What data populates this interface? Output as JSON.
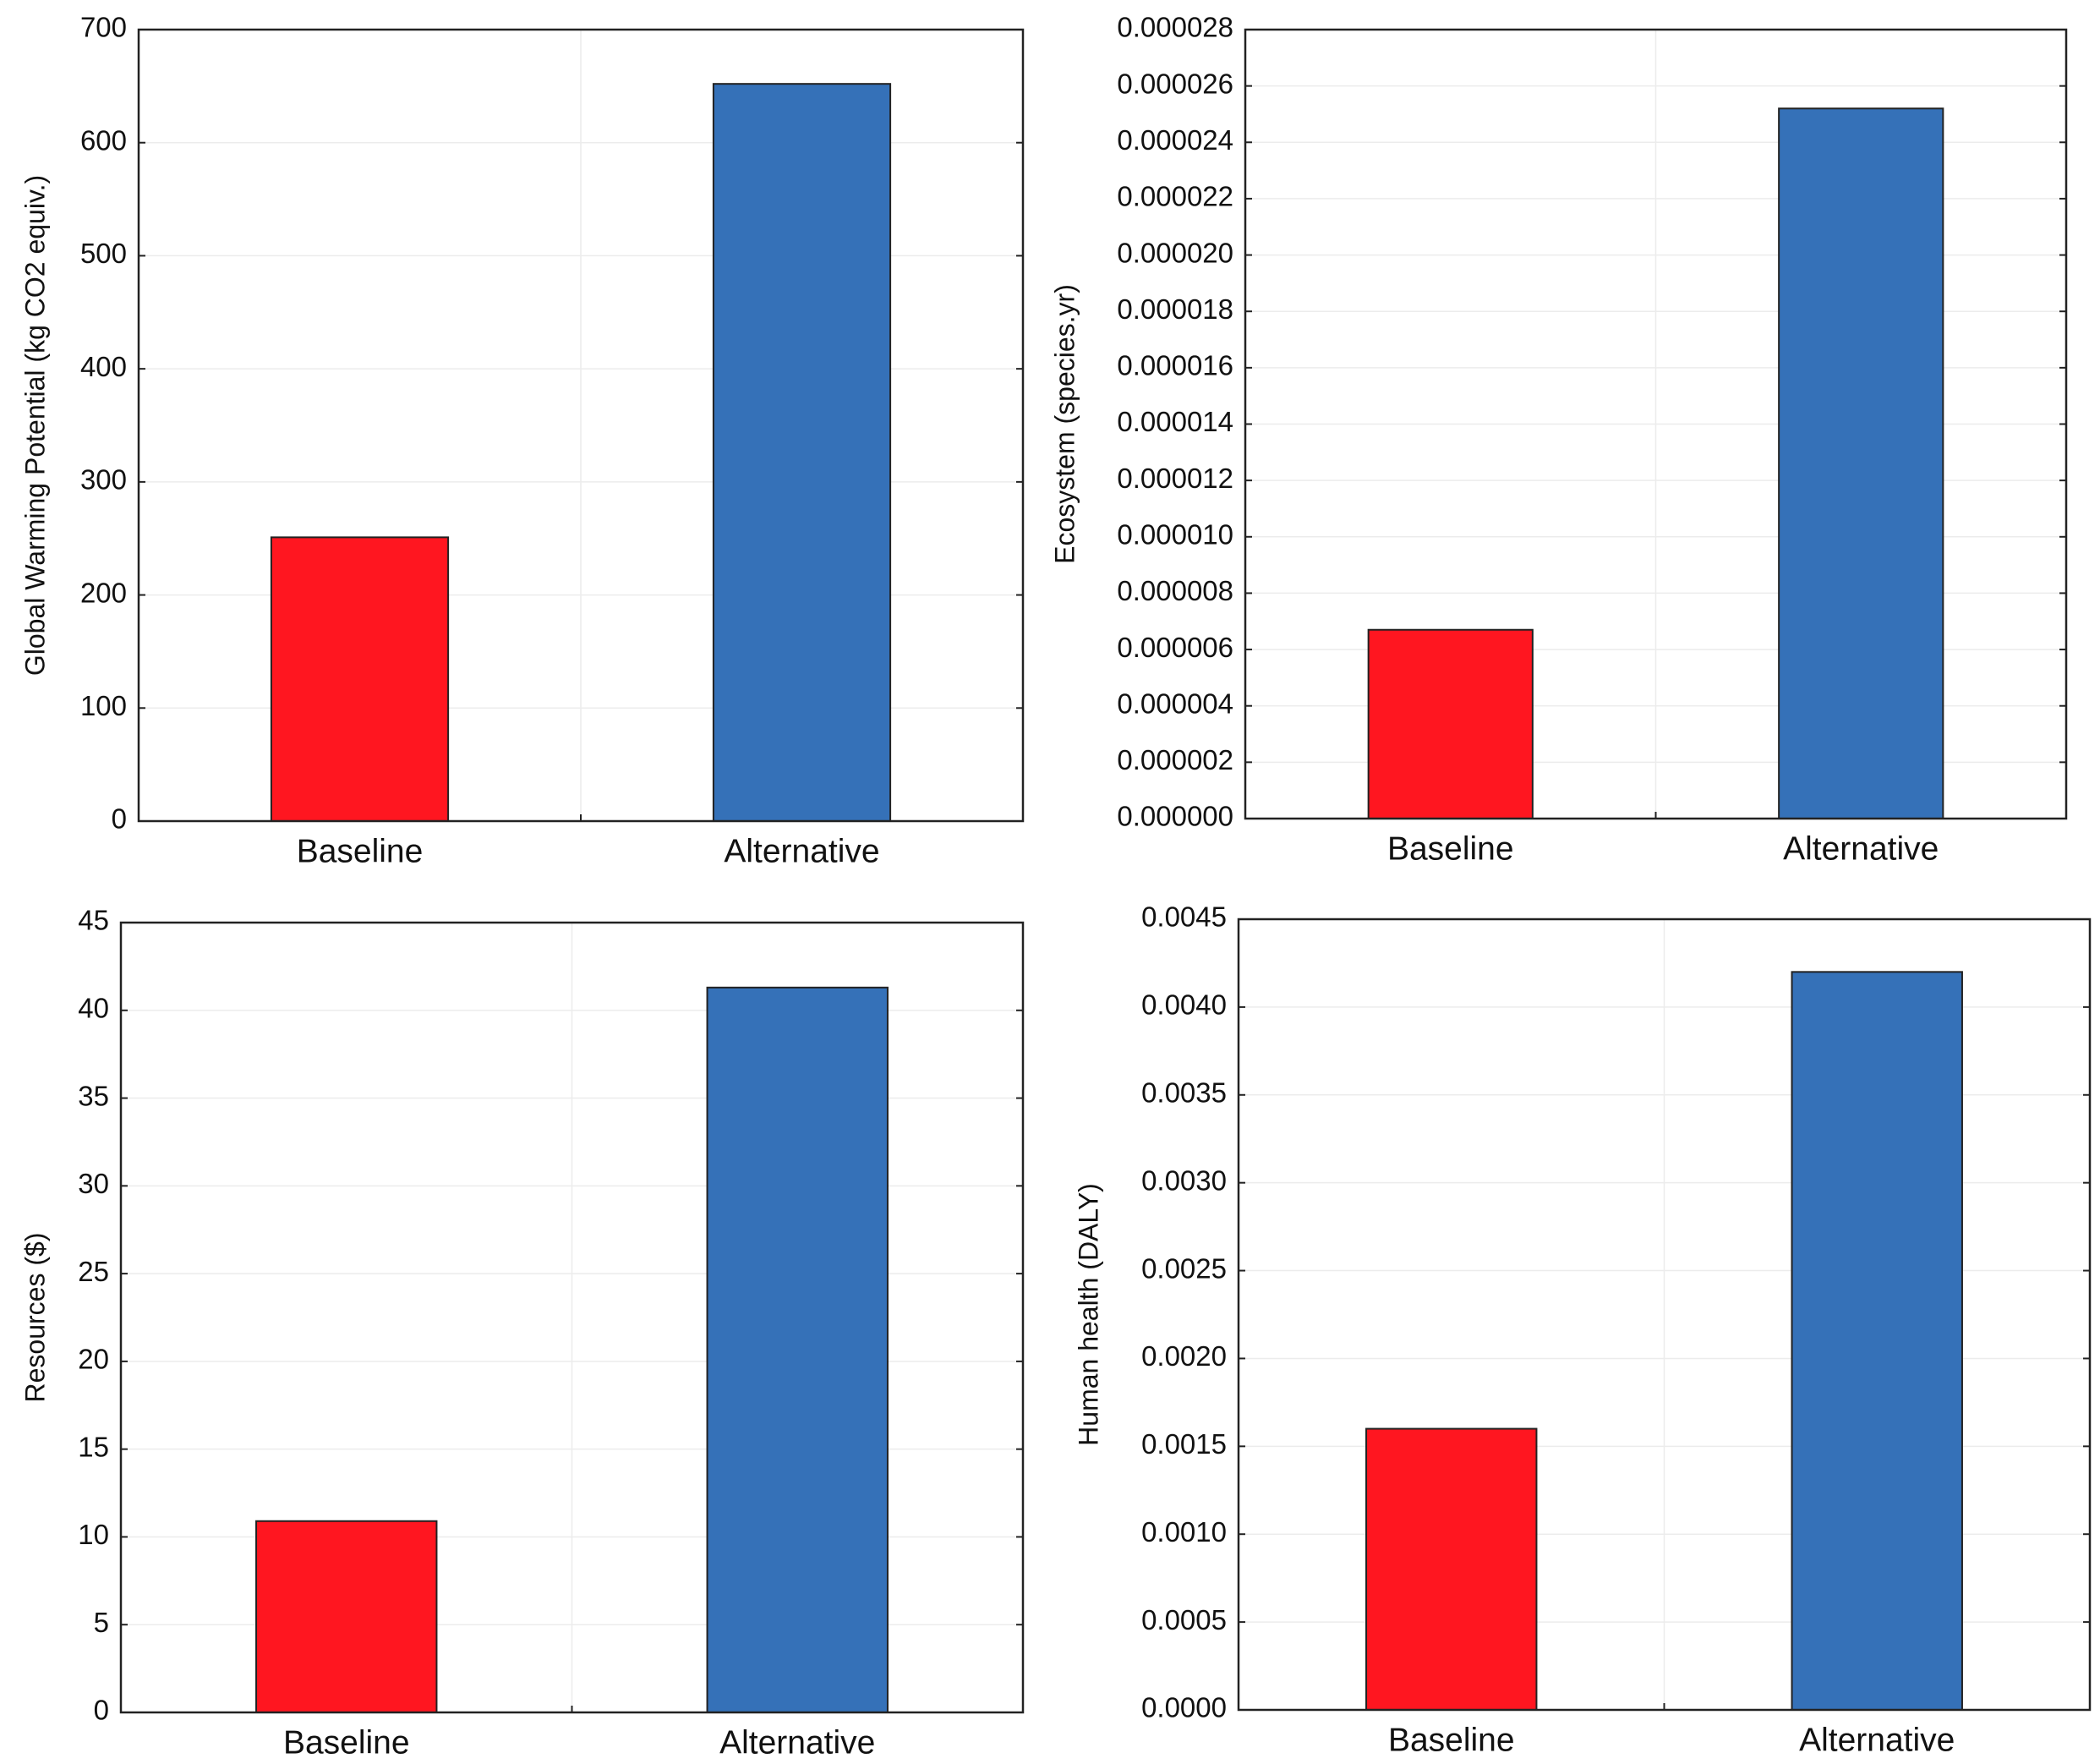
{
  "chart_data": [
    {
      "type": "bar",
      "y_label": "Global Warming Potential (kg CO2 equiv.)",
      "categories": [
        "Baseline",
        "Alternative"
      ],
      "values": [
        251,
        652
      ],
      "colors": [
        "#ff1620",
        "#3571b8"
      ],
      "ylim": [
        0,
        700
      ],
      "yticks": [
        0,
        100,
        200,
        300,
        400,
        500,
        600,
        700
      ],
      "grid": true
    },
    {
      "type": "bar",
      "y_label": "Ecosystem (species.yr)",
      "categories": [
        "Baseline",
        "Alternative"
      ],
      "values": [
        6.7e-06,
        2.52e-05
      ],
      "colors": [
        "#ff1620",
        "#3571b8"
      ],
      "ylim": [
        0,
        2.8e-05
      ],
      "yticks": [
        {
          "value": 0,
          "label": "0.000000"
        },
        {
          "value": 2e-06,
          "label": "0.000002"
        },
        {
          "value": 4e-06,
          "label": "0.000004"
        },
        {
          "value": 6e-06,
          "label": "0.000006"
        },
        {
          "value": 8e-06,
          "label": "0.000008"
        },
        {
          "value": 1e-05,
          "label": "0.000010"
        },
        {
          "value": 1.2e-05,
          "label": "0.000012"
        },
        {
          "value": 1.4e-05,
          "label": "0.000014"
        },
        {
          "value": 1.6e-05,
          "label": "0.000016"
        },
        {
          "value": 1.8e-05,
          "label": "0.000018"
        },
        {
          "value": 2e-05,
          "label": "0.000020"
        },
        {
          "value": 2.2e-05,
          "label": "0.000022"
        },
        {
          "value": 2.4e-05,
          "label": "0.000024"
        },
        {
          "value": 2.6e-05,
          "label": "0.000026"
        },
        {
          "value": 2.8e-05,
          "label": "0.000028"
        }
      ],
      "grid": true
    },
    {
      "type": "bar",
      "y_label": "Resources ($)",
      "categories": [
        "Baseline",
        "Alternative"
      ],
      "values": [
        10.9,
        41.3
      ],
      "colors": [
        "#ff1620",
        "#3571b8"
      ],
      "ylim": [
        0,
        45
      ],
      "yticks": [
        0,
        5,
        10,
        15,
        20,
        25,
        30,
        35,
        40,
        45
      ],
      "grid": true
    },
    {
      "type": "bar",
      "y_label": "Human health (DALY)",
      "categories": [
        "Baseline",
        "Alternative"
      ],
      "values": [
        0.0016,
        0.0042
      ],
      "colors": [
        "#ff1620",
        "#3571b8"
      ],
      "ylim": [
        0,
        0.0045
      ],
      "yticks": [
        {
          "value": 0,
          "label": "0.0000"
        },
        {
          "value": 0.0005,
          "label": "0.0005"
        },
        {
          "value": 0.001,
          "label": "0.0010"
        },
        {
          "value": 0.0015,
          "label": "0.0015"
        },
        {
          "value": 0.002,
          "label": "0.0020"
        },
        {
          "value": 0.0025,
          "label": "0.0025"
        },
        {
          "value": 0.003,
          "label": "0.0030"
        },
        {
          "value": 0.0035,
          "label": "0.0035"
        },
        {
          "value": 0.004,
          "label": "0.0040"
        },
        {
          "value": 0.0045,
          "label": "0.0045"
        }
      ],
      "grid": true
    }
  ]
}
